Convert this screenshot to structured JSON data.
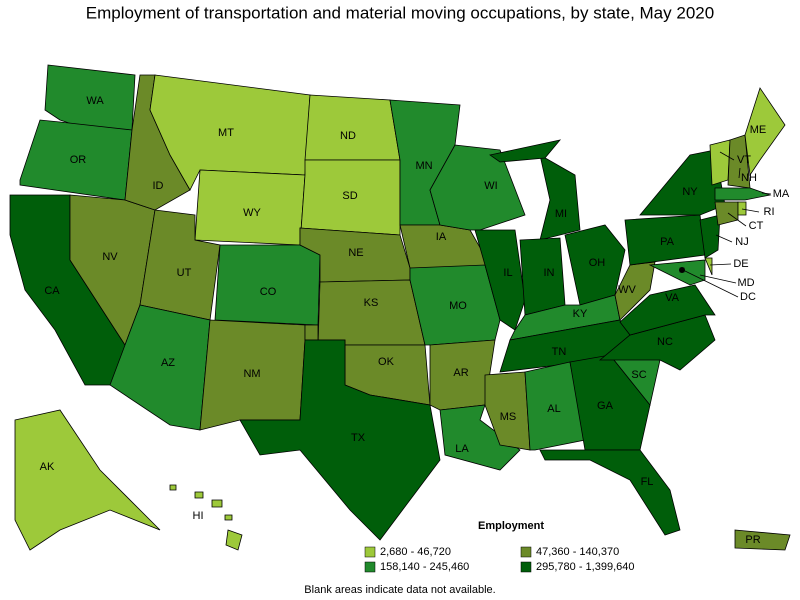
{
  "title": "Employment of transportation and material moving occupations, by state, May 2020",
  "legend": {
    "title": "Employment",
    "items": [
      {
        "label": "2,680 - 46,720",
        "color": "#9dc93a"
      },
      {
        "label": "47,360 - 140,370",
        "color": "#6b8a28"
      },
      {
        "label": "158,140 - 245,460",
        "color": "#218a2c"
      },
      {
        "label": "295,780 - 1,399,640",
        "color": "#005e0a"
      }
    ]
  },
  "note": "Blank areas indicate data not available.",
  "states": [
    {
      "label": "WA",
      "class": 2
    },
    {
      "label": "OR",
      "class": 2
    },
    {
      "label": "CA",
      "class": 3
    },
    {
      "label": "NV",
      "class": 1
    },
    {
      "label": "ID",
      "class": 1
    },
    {
      "label": "MT",
      "class": 0
    },
    {
      "label": "WY",
      "class": 0
    },
    {
      "label": "UT",
      "class": 1
    },
    {
      "label": "CO",
      "class": 2
    },
    {
      "label": "AZ",
      "class": 2
    },
    {
      "label": "NM",
      "class": 1
    },
    {
      "label": "ND",
      "class": 0
    },
    {
      "label": "SD",
      "class": 0
    },
    {
      "label": "NE",
      "class": 1
    },
    {
      "label": "KS",
      "class": 1
    },
    {
      "label": "OK",
      "class": 1
    },
    {
      "label": "TX",
      "class": 3
    },
    {
      "label": "MN",
      "class": 2
    },
    {
      "label": "IA",
      "class": 1
    },
    {
      "label": "MO",
      "class": 2
    },
    {
      "label": "AR",
      "class": 1
    },
    {
      "label": "LA",
      "class": 2
    },
    {
      "label": "WI",
      "class": 2
    },
    {
      "label": "IL",
      "class": 3
    },
    {
      "label": "MI",
      "class": 3
    },
    {
      "label": "IN",
      "class": 3
    },
    {
      "label": "OH",
      "class": 3
    },
    {
      "label": "KY",
      "class": 2
    },
    {
      "label": "TN",
      "class": 3
    },
    {
      "label": "MS",
      "class": 1
    },
    {
      "label": "AL",
      "class": 2
    },
    {
      "label": "GA",
      "class": 3
    },
    {
      "label": "FL",
      "class": 3
    },
    {
      "label": "SC",
      "class": 2
    },
    {
      "label": "NC",
      "class": 3
    },
    {
      "label": "VA",
      "class": 3
    },
    {
      "label": "WV",
      "class": 1
    },
    {
      "label": "PA",
      "class": 3
    },
    {
      "label": "NY",
      "class": 3
    },
    {
      "label": "NJ",
      "class": 3
    },
    {
      "label": "DE",
      "class": 0
    },
    {
      "label": "MD",
      "class": 2
    },
    {
      "label": "DC",
      "class": 0
    },
    {
      "label": "VT",
      "class": 0
    },
    {
      "label": "NH",
      "class": 1
    },
    {
      "label": "ME",
      "class": 0
    },
    {
      "label": "MA",
      "class": 2
    },
    {
      "label": "CT",
      "class": 1
    },
    {
      "label": "RI",
      "class": 0
    },
    {
      "label": "AK",
      "class": 0
    },
    {
      "label": "HI",
      "class": 0
    },
    {
      "label": "PR",
      "class": 1
    }
  ]
}
